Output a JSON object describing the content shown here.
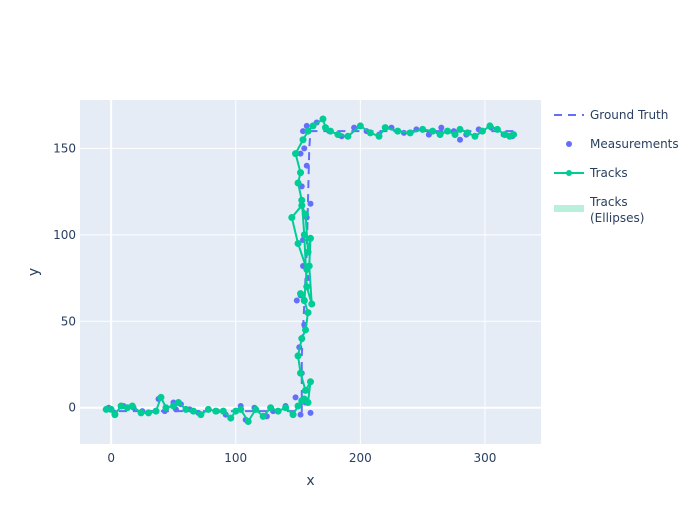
{
  "chart_data": {
    "type": "scatter",
    "title": "",
    "xlabel": "x",
    "ylabel": "y",
    "xlim": [
      -25,
      345
    ],
    "ylim": [
      -21,
      178
    ],
    "grid": true,
    "legend_position": "top-right",
    "x_ticks": [
      0,
      100,
      200,
      300
    ],
    "y_ticks": [
      0,
      50,
      100,
      150
    ],
    "x_tick_labels": [
      "0",
      "100",
      "200",
      "300"
    ],
    "y_tick_labels": [
      "0",
      "50",
      "100",
      "150"
    ],
    "colors": {
      "plot_bg": "#e5ecf6",
      "grid": "#ffffff",
      "ground_truth": "#636efa",
      "measurements": "#636efa",
      "tracks": "#00cc96",
      "ellipses": "#b8f0dc"
    },
    "series": [
      {
        "name": "Ground Truth",
        "mode": "dashed-line",
        "x": [
          -5,
          20,
          40,
          60,
          80,
          100,
          120,
          140,
          153,
          153,
          155,
          157,
          158,
          159,
          160,
          180,
          200,
          220,
          240,
          260,
          280,
          300,
          325
        ],
        "y": [
          -2,
          -2,
          -2,
          -2,
          -2,
          -2,
          -2,
          -2,
          -2,
          30,
          60,
          90,
          120,
          150,
          160,
          160,
          160,
          160,
          160,
          160,
          160,
          160,
          160
        ]
      },
      {
        "name": "Measurements",
        "mode": "markers",
        "x": [
          -2,
          3,
          10,
          18,
          25,
          30,
          38,
          43,
          50,
          52,
          56,
          63,
          70,
          78,
          85,
          92,
          100,
          104,
          108,
          115,
          125,
          130,
          140,
          148,
          152,
          156,
          160,
          157,
          153,
          151,
          155,
          152,
          158,
          154,
          149,
          154,
          157,
          153,
          160,
          157,
          152,
          155,
          154,
          157,
          165,
          175,
          185,
          195,
          205,
          215,
          225,
          235,
          245,
          255,
          265,
          275,
          280,
          285,
          295,
          305,
          315,
          322
        ],
        "y": [
          0,
          -3,
          1,
          0,
          -2,
          -3,
          5,
          -2,
          3,
          -1,
          2,
          -1,
          -3,
          -1,
          -2,
          -4,
          -2,
          1,
          -7,
          0,
          -5,
          -2,
          1,
          6,
          -4,
          3,
          -3,
          10,
          20,
          35,
          48,
          65,
          75,
          82,
          62,
          97,
          110,
          128,
          118,
          140,
          147,
          150,
          160,
          163,
          165,
          160,
          157,
          162,
          160,
          158,
          162,
          159,
          161,
          158,
          162,
          160,
          155,
          158,
          161,
          162,
          158,
          157
        ]
      },
      {
        "name": "Tracks",
        "mode": "lines+markers",
        "x": [
          -4,
          0,
          3,
          8,
          13,
          17,
          24,
          30,
          36,
          40,
          44,
          50,
          54,
          60,
          66,
          72,
          78,
          84,
          90,
          96,
          100,
          104,
          110,
          116,
          122,
          128,
          134,
          140,
          146,
          150,
          153,
          155,
          158,
          160,
          156,
          152,
          150,
          153,
          156,
          158,
          155,
          152,
          155,
          157,
          150,
          145,
          153,
          156,
          158,
          160,
          159,
          161,
          157,
          155,
          153,
          150,
          152,
          148,
          154,
          158,
          162,
          170,
          172,
          176,
          182,
          190,
          200,
          208,
          215,
          220,
          230,
          240,
          250,
          258,
          264,
          270,
          276,
          280,
          286,
          292,
          298,
          304,
          310,
          316,
          320,
          323
        ],
        "y": [
          -1,
          -1,
          -4,
          1,
          0,
          1,
          -3,
          -3,
          -2,
          6,
          0,
          1,
          3,
          -1,
          -2,
          -4,
          -1,
          -2,
          -2,
          -6,
          -2,
          -1,
          -8,
          -1,
          -5,
          0,
          -2,
          0,
          -4,
          1,
          4,
          5,
          3,
          15,
          10,
          20,
          30,
          40,
          45,
          55,
          62,
          66,
          62,
          80,
          95,
          110,
          117,
          112,
          90,
          98,
          82,
          60,
          70,
          100,
          120,
          130,
          136,
          147,
          155,
          160,
          163,
          167,
          162,
          160,
          158,
          157,
          163,
          159,
          157,
          162,
          160,
          159,
          161,
          160,
          158,
          160,
          158,
          161,
          159,
          157,
          160,
          163,
          161,
          158,
          157,
          158
        ]
      },
      {
        "name": "Tracks (Ellipses)",
        "mode": "legend-only",
        "x": [],
        "y": []
      }
    ]
  },
  "legend": {
    "items": [
      {
        "label": "Ground Truth"
      },
      {
        "label": "Measurements"
      },
      {
        "label": "Tracks"
      },
      {
        "label_line1": "Tracks",
        "label_line2": "(Ellipses)"
      }
    ]
  }
}
